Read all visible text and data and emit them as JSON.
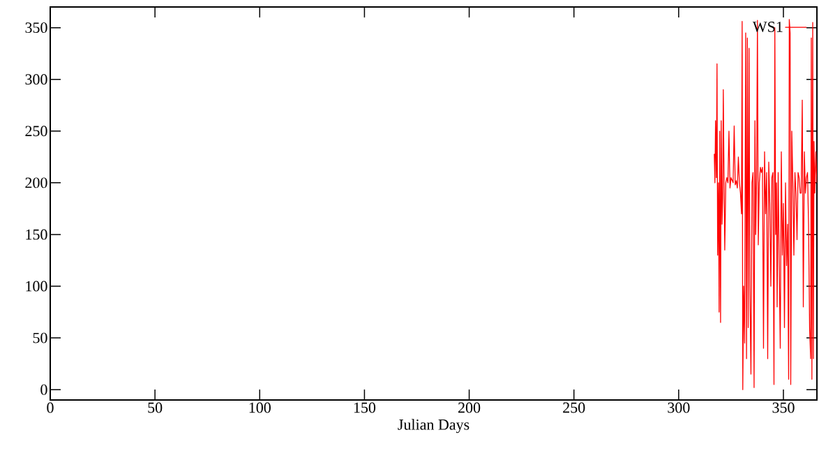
{
  "chart_data": {
    "type": "line",
    "xlabel": "Julian Days",
    "xlim": [
      0,
      366
    ],
    "ylim": [
      -10,
      370
    ],
    "xticks": [
      0,
      50,
      100,
      150,
      200,
      250,
      300,
      350
    ],
    "yticks": [
      0,
      50,
      100,
      150,
      200,
      250,
      300,
      350
    ],
    "grid": false,
    "legend": "top right",
    "marker": "none",
    "line_style": "solid",
    "series": [
      {
        "name": "WS1",
        "color": "#ff0000",
        "x": [
          317,
          317.3,
          317.6,
          318,
          318.3,
          318.6,
          319,
          319.3,
          319.6,
          320,
          320.3,
          320.7,
          321,
          321.3,
          321.7,
          322,
          322.5,
          323,
          323.5,
          324,
          324.5,
          325,
          326,
          326.5,
          327,
          327.5,
          328,
          328.5,
          329,
          329.5,
          330,
          330.3,
          330.6,
          331,
          331.5,
          332,
          332.4,
          332.8,
          333.2,
          333.6,
          334,
          334.5,
          335,
          335.5,
          336,
          336.4,
          336.8,
          337.2,
          337.6,
          338,
          338.5,
          339,
          339.5,
          340,
          340.5,
          341,
          341.5,
          342,
          342.5,
          343,
          343.5,
          344,
          344.5,
          345,
          345.5,
          345.9,
          346.3,
          346.7,
          347,
          347.5,
          348,
          348.5,
          349,
          349.5,
          350,
          350.5,
          351,
          351.5,
          352,
          352.5,
          352.8,
          353.2,
          353.5,
          354,
          354.5,
          355,
          355.5,
          356,
          356.5,
          357,
          357.5,
          358,
          358.5,
          359,
          359.5,
          360,
          360.5,
          361,
          361.5,
          362,
          362.5,
          363,
          363.3,
          363.6,
          364,
          364.3,
          364.6,
          365,
          365.5,
          366
        ],
        "values": [
          228,
          200,
          260,
          205,
          315,
          130,
          200,
          75,
          250,
          65,
          260,
          160,
          185,
          290,
          195,
          135,
          200,
          205,
          200,
          250,
          195,
          205,
          200,
          255,
          198,
          202,
          195,
          225,
          200,
          190,
          170,
          356,
          0,
          100,
          45,
          345,
          30,
          340,
          60,
          330,
          100,
          15,
          200,
          210,
          2,
          260,
          150,
          205,
          357,
          140,
          200,
          215,
          210,
          215,
          40,
          230,
          170,
          210,
          30,
          220,
          180,
          100,
          205,
          210,
          5,
          350,
          150,
          200,
          80,
          210,
          120,
          40,
          230,
          130,
          180,
          60,
          200,
          120,
          160,
          10,
          358,
          345,
          5,
          250,
          200,
          130,
          210,
          190,
          145,
          210,
          205,
          190,
          190,
          280,
          80,
          230,
          190,
          205,
          210,
          160,
          60,
          30,
          340,
          10,
          355,
          30,
          240,
          190,
          230,
          200
        ]
      }
    ]
  }
}
